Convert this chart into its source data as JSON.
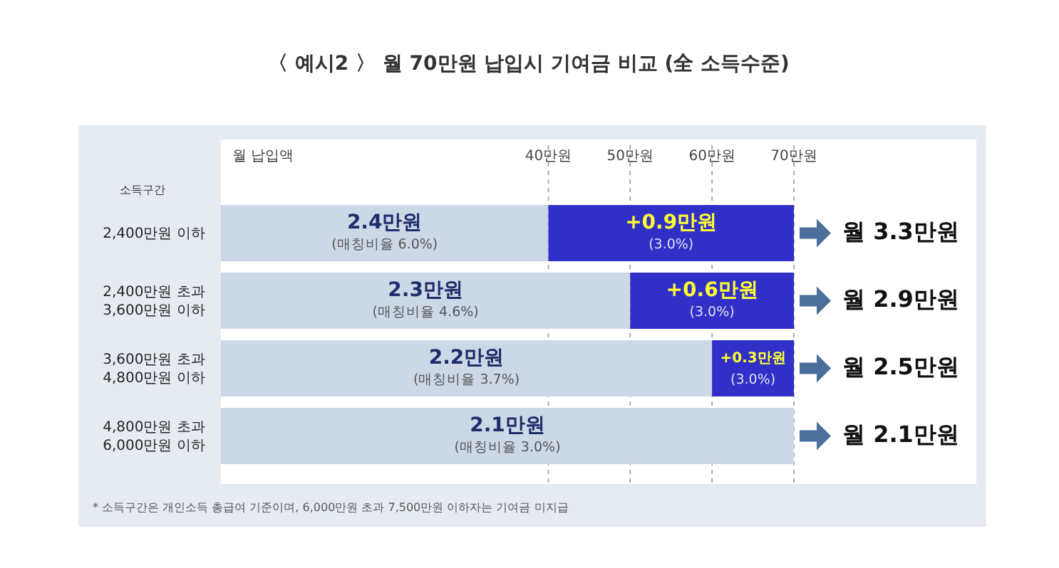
{
  "chart_data": {
    "type": "bar",
    "orientation": "horizontal",
    "stacked": true,
    "title": "〈 예시2 〉  월 70만원 납입시 기여금 비교 (全 소득수준)",
    "xlabel": "월 납입액",
    "ylabel": "소득구간",
    "categories": [
      "2,400만원 이하",
      "2,400만원 초과\n3,600만원 이하",
      "3,600만원 초과\n4,800만원 이하",
      "4,800만원 초과\n6,000만원 이하"
    ],
    "series": [
      {
        "color": "#cdd8e7",
        "values": [
          40,
          50,
          60,
          70
        ]
      },
      {
        "color": "#3030c8",
        "values": [
          30,
          20,
          10,
          null
        ]
      }
    ],
    "totals": [
      "월 3.3만원",
      "월 2.9만원",
      "월 2.5만원",
      "월 2.1만원"
    ],
    "xlim": [
      0,
      70
    ],
    "xticks": [
      {
        "value": 40,
        "label": "40만원"
      },
      {
        "value": 50,
        "label": "50만원"
      },
      {
        "value": 60,
        "label": "60만원"
      },
      {
        "value": 70,
        "label": "70만원"
      }
    ],
    "grid": "x",
    "annotations": [
      {
        "text": "2.4만원\n(매칭비율 6.0%)",
        "x": 20,
        "y": "2,400만원 이하"
      },
      {
        "text": "2.3만원\n(매칭비율 4.6%)",
        "x": 25,
        "y": "2,400만원 초과\n3,600만원 이하"
      },
      {
        "text": "2.2만원\n(매칭비율 3.7%)",
        "x": 30,
        "y": "3,600만원 초과\n4,800만원 이하"
      },
      {
        "text": "2.1만원\n(매칭비율 3.0%)",
        "x": 35,
        "y": "4,800만원 초과\n6,000만원 이하"
      },
      {
        "text": "+0.9만원\n(3.0%)",
        "x": 55,
        "y": "2,400만원 이하"
      },
      {
        "text": "+0.6만원\n(3.0%)",
        "x": 60,
        "y": "2,400만원 초과\n3,600만원 이하"
      },
      {
        "text": "+0.3만원\n(3.0%)",
        "x": 65,
        "y": "3,600만원 초과\n4,800만원 이하"
      },
      "* 소득구간은 개인소득 총급여 기준이며, 6,000만원 초과 7,500만원 이하자는 기여금 미지급"
    ]
  }
}
